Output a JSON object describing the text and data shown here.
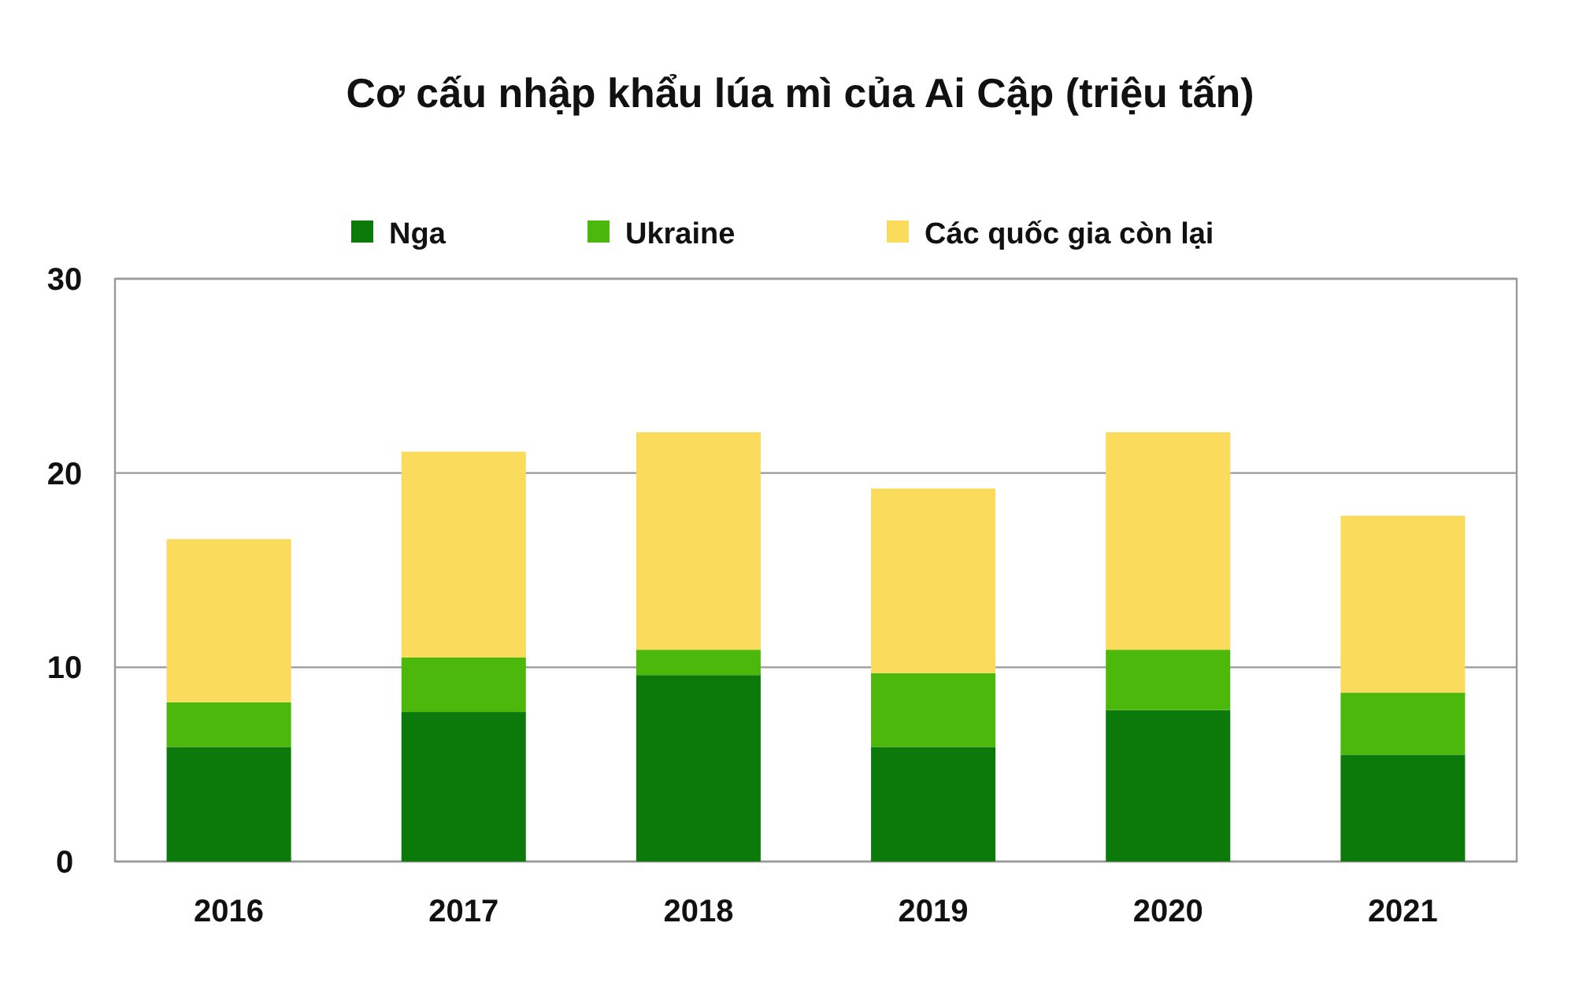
{
  "chart_data": {
    "type": "bar",
    "title": "Cơ cấu nhập khẩu lúa mì của Ai Cập (triệu tấn)",
    "categories": [
      "2016",
      "2017",
      "2018",
      "2019",
      "2020",
      "2021"
    ],
    "stacked": true,
    "series": [
      {
        "name": "Nga",
        "color": "#0b7a0b",
        "values": [
          5.9,
          7.7,
          9.6,
          5.9,
          7.8,
          5.5
        ]
      },
      {
        "name": "Ukraine",
        "color": "#4cb80c",
        "values": [
          2.3,
          2.8,
          1.3,
          3.8,
          3.1,
          3.2
        ]
      },
      {
        "name": "Các quốc gia còn lại",
        "color": "#fbdb5c",
        "values": [
          8.4,
          10.6,
          11.2,
          9.5,
          11.2,
          9.1
        ]
      }
    ],
    "ylim": [
      0,
      30
    ],
    "yticks": [
      0,
      10,
      20,
      30
    ],
    "grid": "y",
    "legend": "top"
  }
}
